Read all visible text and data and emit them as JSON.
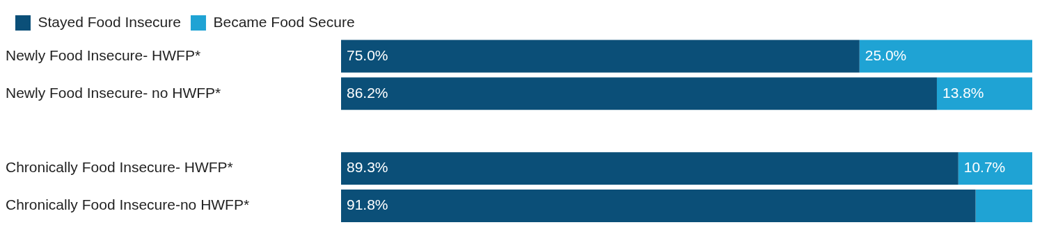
{
  "chart_data": {
    "type": "bar",
    "orientation": "horizontal",
    "stacked": true,
    "legend": "top left",
    "tick_labels": "y",
    "xlim": [
      0,
      100
    ],
    "categories": [
      "Newly Food Insecure- HWFP*",
      "Newly Food Insecure- no HWFP*",
      null,
      "Chronically Food Insecure- HWFP*",
      "Chronically Food Insecure-no HWFP*"
    ],
    "series": [
      {
        "name": "Stayed Food Insecure",
        "color": "#0b4f78",
        "values": [
          75.0,
          86.2,
          null,
          89.3,
          91.8
        ],
        "value_labels": [
          "75.0%",
          "86.2%",
          null,
          "89.3%",
          "91.8%"
        ]
      },
      {
        "name": "Became Food Secure",
        "color": "#1fa3d4",
        "values": [
          25.0,
          13.8,
          null,
          10.7,
          8.2
        ],
        "value_labels": [
          "25.0%",
          "13.8%",
          null,
          "10.7%",
          null
        ]
      }
    ]
  }
}
